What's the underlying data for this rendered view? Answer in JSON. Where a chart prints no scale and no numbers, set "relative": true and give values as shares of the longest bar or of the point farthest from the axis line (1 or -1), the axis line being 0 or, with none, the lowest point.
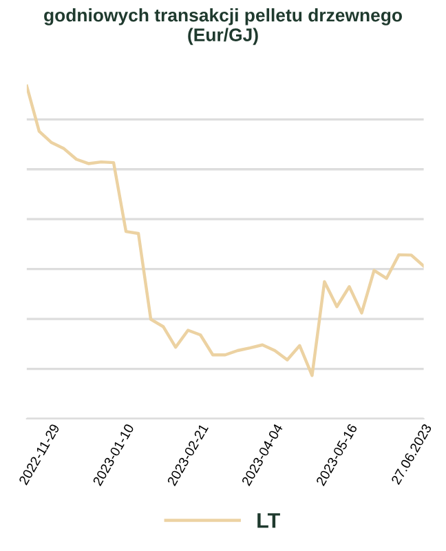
{
  "chart_data": {
    "type": "line",
    "title": "godniowych transakcji pelletu drzewnego\n(Eur/GJ)",
    "relative": true,
    "tick_labels": "x",
    "grid": "y",
    "legend": "bottom",
    "marker": "none",
    "line_style": "solid",
    "categories": [
      null,
      null,
      "2022-11-29",
      null,
      null,
      null,
      null,
      null,
      "2023-01-10",
      null,
      null,
      null,
      null,
      null,
      "2023-02-21",
      null,
      null,
      null,
      null,
      null,
      "2023-04-04",
      null,
      null,
      null,
      null,
      null,
      "2023-05-16",
      null,
      null,
      null,
      null,
      null,
      "27.06.2023"
    ],
    "series": [
      {
        "name": "LT",
        "color": "#ecd2a2",
        "values": [
          1.0,
          0.864,
          0.83,
          0.812,
          0.78,
          0.767,
          0.772,
          0.77,
          0.563,
          0.557,
          0.299,
          0.277,
          0.215,
          0.266,
          0.252,
          0.192,
          0.192,
          0.205,
          0.213,
          0.222,
          0.205,
          0.177,
          0.22,
          0.13,
          0.412,
          0.337,
          0.397,
          0.318,
          0.446,
          0.422,
          0.493,
          0.492,
          0.459
        ]
      }
    ]
  }
}
